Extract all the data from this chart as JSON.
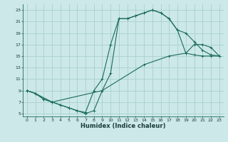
{
  "title": "",
  "xlabel": "Humidex (Indice chaleur)",
  "bg_color": "#cce8e8",
  "line_color": "#1a6b5a",
  "grid_color": "#aad0d0",
  "xlim": [
    -0.5,
    23.5
  ],
  "ylim": [
    4.5,
    24
  ],
  "xticks": [
    0,
    1,
    2,
    3,
    4,
    5,
    6,
    7,
    8,
    9,
    10,
    11,
    12,
    13,
    14,
    15,
    16,
    17,
    18,
    19,
    20,
    21,
    22,
    23
  ],
  "yticks": [
    5,
    7,
    9,
    11,
    13,
    15,
    17,
    19,
    21,
    23
  ],
  "curve1_x": [
    0,
    1,
    2,
    3,
    4,
    5,
    6,
    7,
    8,
    9,
    10,
    11,
    12,
    13,
    14,
    15,
    16,
    17,
    18,
    19,
    20,
    21,
    22,
    23
  ],
  "curve1_y": [
    9,
    8.5,
    7.5,
    7,
    6.5,
    6,
    5.5,
    5,
    5.5,
    9,
    12,
    21.5,
    21.5,
    22,
    22.5,
    23,
    22.5,
    21.5,
    19.5,
    19,
    17.5,
    16,
    15.2,
    15
  ],
  "curve2_x": [
    0,
    1,
    2,
    3,
    4,
    5,
    6,
    7,
    8,
    9,
    10,
    11,
    12,
    13,
    14,
    15,
    16,
    17,
    18,
    19,
    20,
    21,
    22,
    23
  ],
  "curve2_y": [
    9,
    8.5,
    7.5,
    7,
    6.5,
    6,
    5.5,
    5.2,
    9,
    11,
    17,
    21.5,
    21.5,
    22,
    22.5,
    23,
    22.5,
    21.5,
    19.5,
    15.5,
    15.2,
    15,
    15,
    15
  ],
  "curve3_x": [
    0,
    1,
    3,
    9,
    14,
    17,
    19,
    20,
    21,
    22,
    23
  ],
  "curve3_y": [
    9,
    8.5,
    7,
    9,
    13.5,
    15,
    15.5,
    17,
    17,
    16.5,
    15
  ]
}
